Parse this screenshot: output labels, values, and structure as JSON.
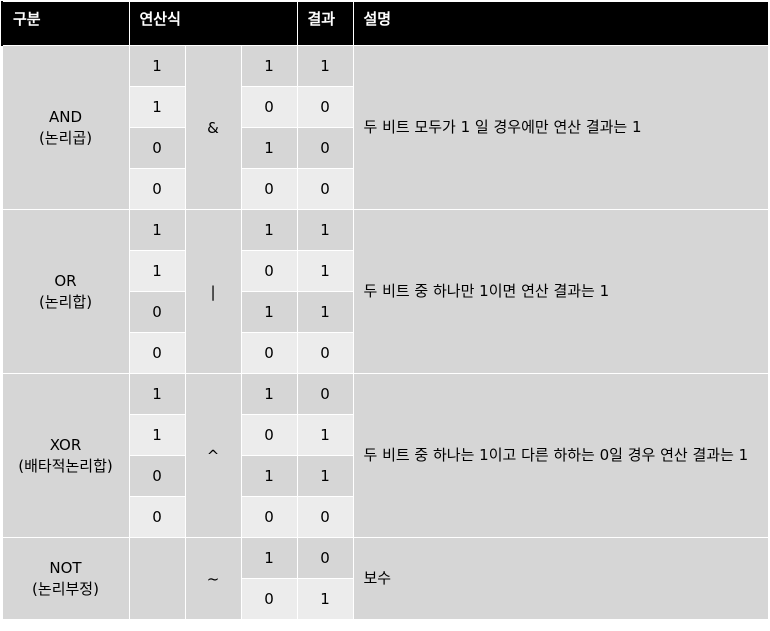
{
  "header": {
    "category": "구분",
    "expression": "연산식",
    "result": "결과",
    "description": "설명"
  },
  "groups": [
    {
      "name": "AND",
      "alias": "(논리곱)",
      "operator": "&",
      "description": "두 비트 모두가 1 일 경우에만 연산 결과는 1",
      "rows": [
        [
          "1",
          "1",
          "1"
        ],
        [
          "1",
          "0",
          "0"
        ],
        [
          "0",
          "1",
          "0"
        ],
        [
          "0",
          "0",
          "0"
        ]
      ]
    },
    {
      "name": "OR",
      "alias": "(논리합)",
      "operator": "|",
      "description": "두 비트 중 하나만 1이면 연산 결과는 1",
      "rows": [
        [
          "1",
          "1",
          "1"
        ],
        [
          "1",
          "0",
          "1"
        ],
        [
          "0",
          "1",
          "1"
        ],
        [
          "0",
          "0",
          "0"
        ]
      ]
    },
    {
      "name": "XOR",
      "alias": "(배타적논리합)",
      "operator": "^",
      "description": "두 비트 중 하나는 1이고 다른 하하는 0일 경우 연산 결과는 1",
      "rows": [
        [
          "1",
          "1",
          "0"
        ],
        [
          "1",
          "0",
          "1"
        ],
        [
          "0",
          "1",
          "1"
        ],
        [
          "0",
          "0",
          "0"
        ]
      ]
    },
    {
      "name": "NOT",
      "alias": "(논리부정)",
      "operator": "~",
      "description": "보수",
      "rows": [
        [
          "",
          "1",
          "0"
        ],
        [
          "",
          "0",
          "1"
        ]
      ]
    }
  ]
}
